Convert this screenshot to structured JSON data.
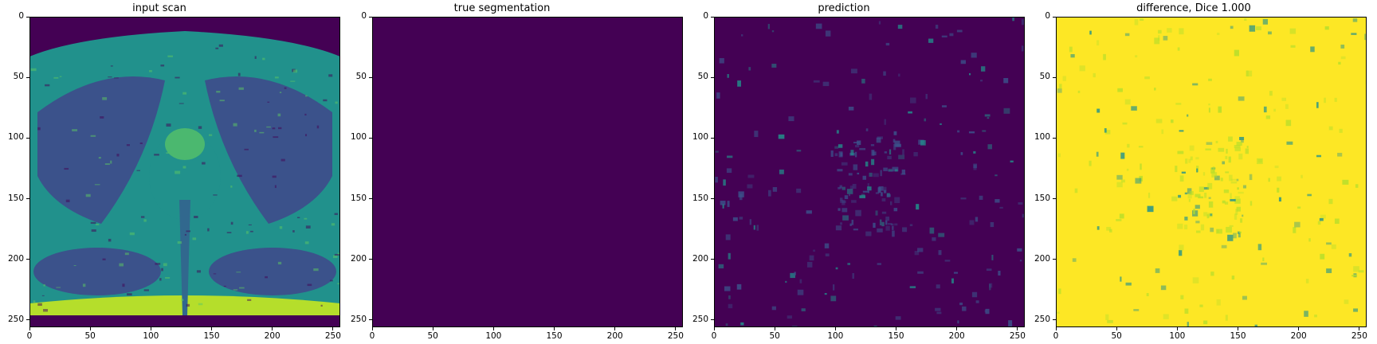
{
  "figure": {
    "panels": [
      {
        "title": "input scan",
        "kind": "mri",
        "colors": [
          "#3b528b",
          "#21918c",
          "#5ec962"
        ]
      },
      {
        "title": "true segmentation",
        "kind": "flat",
        "colors": [
          "#440154"
        ]
      },
      {
        "title": "prediction",
        "kind": "dark-noise",
        "colors": [
          "#440154",
          "#3b528b",
          "#21918c"
        ]
      },
      {
        "title": "difference, Dice 1.000",
        "kind": "bright-noise",
        "colors": [
          "#fde725",
          "#b5de2b",
          "#21918c"
        ]
      }
    ],
    "x_ticks": [
      "0",
      "50",
      "100",
      "150",
      "200",
      "250"
    ],
    "y_ticks": [
      "0",
      "50",
      "100",
      "150",
      "200",
      "250"
    ],
    "axis_max": 256
  }
}
